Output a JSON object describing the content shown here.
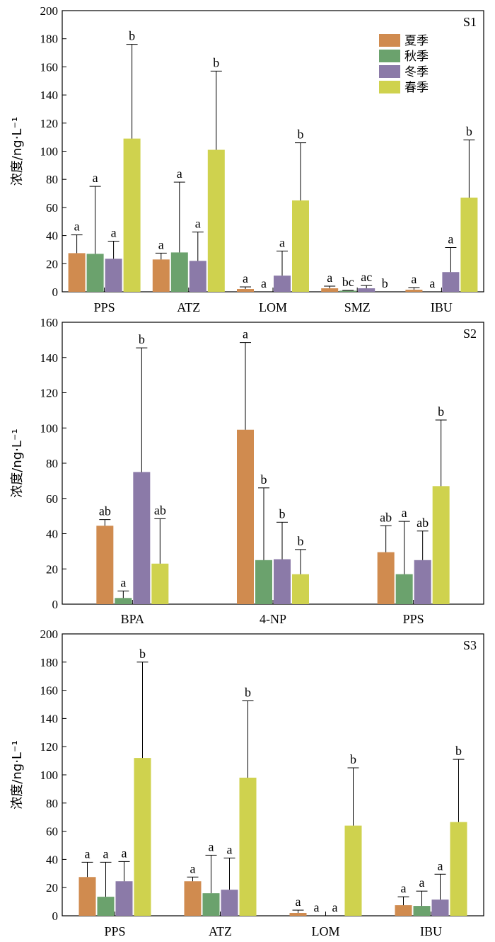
{
  "legend": {
    "items": [
      {
        "label": "夏季",
        "color": "#D08B4F"
      },
      {
        "label": "秋季",
        "color": "#6BA26D"
      },
      {
        "label": "冬季",
        "color": "#8B7AA8"
      },
      {
        "label": "春季",
        "color": "#CFD24E"
      }
    ]
  },
  "chart_data": [
    {
      "type": "bar",
      "panel_label": "S1",
      "ylabel": "浓度/ng·L⁻¹",
      "ylim": [
        0,
        200
      ],
      "yticks": [
        0,
        20,
        40,
        60,
        80,
        100,
        120,
        140,
        160,
        180,
        200
      ],
      "categories": [
        "PPS",
        "ATZ",
        "LOM",
        "SMZ",
        "IBU"
      ],
      "series": [
        {
          "name": "夏季",
          "values": [
            27.5,
            23,
            2,
            2.5,
            1.5
          ],
          "errors": [
            13,
            4.5,
            1.5,
            1.5,
            1.5
          ],
          "sig": [
            "a",
            "a",
            "a",
            "a",
            "a"
          ]
        },
        {
          "name": "秋季",
          "values": [
            27,
            28,
            null,
            0.8,
            null
          ],
          "errors": [
            48,
            50,
            null,
            0.2,
            null
          ],
          "sig": [
            "a",
            "a",
            "a",
            "bc",
            "a"
          ]
        },
        {
          "name": "冬季",
          "values": [
            23.5,
            22,
            11.5,
            2.5,
            14
          ],
          "errors": [
            12.5,
            20.5,
            17.5,
            2,
            17.5
          ],
          "sig": [
            "a",
            "a",
            "a",
            "ac",
            "a"
          ]
        },
        {
          "name": "春季",
          "values": [
            109,
            101,
            65,
            null,
            67
          ],
          "errors": [
            67,
            56,
            41,
            null,
            41
          ],
          "sig": [
            "b",
            "b",
            "b",
            "b",
            "b"
          ]
        }
      ]
    },
    {
      "type": "bar",
      "panel_label": "S2",
      "ylabel": "浓度/ng·L⁻¹",
      "ylim": [
        0,
        160
      ],
      "yticks": [
        0,
        20,
        40,
        60,
        80,
        100,
        120,
        140,
        160
      ],
      "categories": [
        "BPA",
        "4-NP",
        "PPS"
      ],
      "series": [
        {
          "name": "夏季",
          "values": [
            44.5,
            99,
            29.5
          ],
          "errors": [
            3.5,
            49.5,
            15
          ],
          "sig": [
            "ab",
            "a",
            "ab"
          ]
        },
        {
          "name": "秋季",
          "values": [
            3.5,
            25,
            17
          ],
          "errors": [
            4,
            41,
            30
          ],
          "sig": [
            "a",
            "b",
            "a"
          ]
        },
        {
          "name": "冬季",
          "values": [
            75,
            25.5,
            25
          ],
          "errors": [
            70.5,
            21,
            16.5
          ],
          "sig": [
            "b",
            "b",
            "ab"
          ]
        },
        {
          "name": "春季",
          "values": [
            23,
            17,
            67
          ],
          "errors": [
            25.5,
            14,
            37.5
          ],
          "sig": [
            "ab",
            "b",
            "b"
          ]
        }
      ]
    },
    {
      "type": "bar",
      "panel_label": "S3",
      "ylabel": "浓度/ng·L⁻¹",
      "ylim": [
        0,
        200
      ],
      "yticks": [
        0,
        20,
        40,
        60,
        80,
        100,
        120,
        140,
        160,
        180,
        200
      ],
      "categories": [
        "PPS",
        "ATZ",
        "LOM",
        "IBU"
      ],
      "series": [
        {
          "name": "夏季",
          "values": [
            27.5,
            24.5,
            2,
            7.5
          ],
          "errors": [
            10.5,
            3,
            2,
            6
          ],
          "sig": [
            "a",
            "a",
            "a",
            "a"
          ]
        },
        {
          "name": "秋季",
          "values": [
            13.5,
            16,
            null,
            7
          ],
          "errors": [
            24.5,
            27,
            null,
            10.5
          ],
          "sig": [
            "a",
            "a",
            "a",
            "a"
          ]
        },
        {
          "name": "冬季",
          "values": [
            24.5,
            18.5,
            null,
            11.5
          ],
          "errors": [
            14,
            22.5,
            null,
            18
          ],
          "sig": [
            "a",
            "a",
            "a",
            "a"
          ]
        },
        {
          "name": "春季",
          "values": [
            112,
            98,
            64,
            66.5
          ],
          "errors": [
            68,
            54.5,
            41,
            44.5
          ],
          "sig": [
            "b",
            "b",
            "b",
            "b"
          ]
        }
      ]
    }
  ]
}
